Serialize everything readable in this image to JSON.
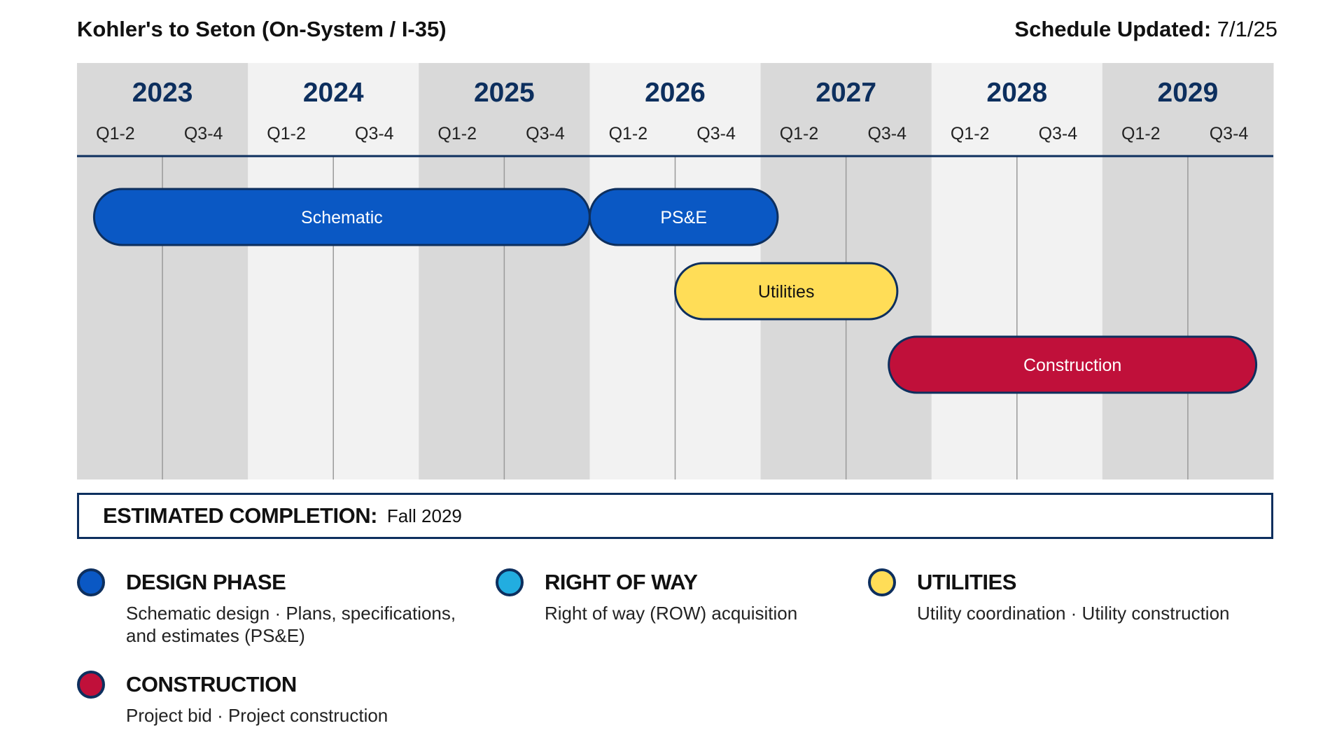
{
  "header": {
    "title": "Kohler's to Seton (On-System / I-35)",
    "updated_label": "Schedule Updated:",
    "updated_value": "7/1/25"
  },
  "chart_data": {
    "type": "gantt",
    "time_unit": "half-year",
    "years": [
      "2023",
      "2024",
      "2025",
      "2026",
      "2027",
      "2028",
      "2029"
    ],
    "periods": [
      "Q1-2",
      "Q3-4"
    ],
    "tasks": [
      {
        "name": "Schematic",
        "phase": "design",
        "start": 2023.1,
        "end": 2026.0,
        "row": 0
      },
      {
        "name": "PS&E",
        "phase": "design",
        "start": 2026.0,
        "end": 2027.1,
        "row": 0
      },
      {
        "name": "Utilities",
        "phase": "utilities",
        "start": 2026.5,
        "end": 2027.8,
        "row": 1
      },
      {
        "name": "Construction",
        "phase": "construction",
        "start": 2027.75,
        "end": 2029.9,
        "row": 2
      }
    ],
    "colors": {
      "design": "#0a58c4",
      "utilities": "#ffdd57",
      "construction": "#c0103a",
      "outline": "#0d2f5e",
      "year_text": "#0d2f5e",
      "band_dark": "#d9d9d9",
      "band_light": "#f2f2f2"
    }
  },
  "completion": {
    "label": "ESTIMATED COMPLETION:",
    "value": "Fall 2029"
  },
  "legend": [
    {
      "title": "DESIGN PHASE",
      "desc": "Schematic design   ·   Plans, specifications,  and estimates (PS&E)",
      "color": "#0a58c4"
    },
    {
      "title": "RIGHT OF WAY",
      "desc": "Right of way (ROW) acquisition",
      "color": "#22ade0"
    },
    {
      "title": "UTILITIES",
      "desc": "Utility coordination · Utility construction",
      "color": "#ffdd57"
    },
    {
      "title": "CONSTRUCTION",
      "desc": "Project bid   ·   Project construction",
      "color": "#c0103a"
    }
  ]
}
